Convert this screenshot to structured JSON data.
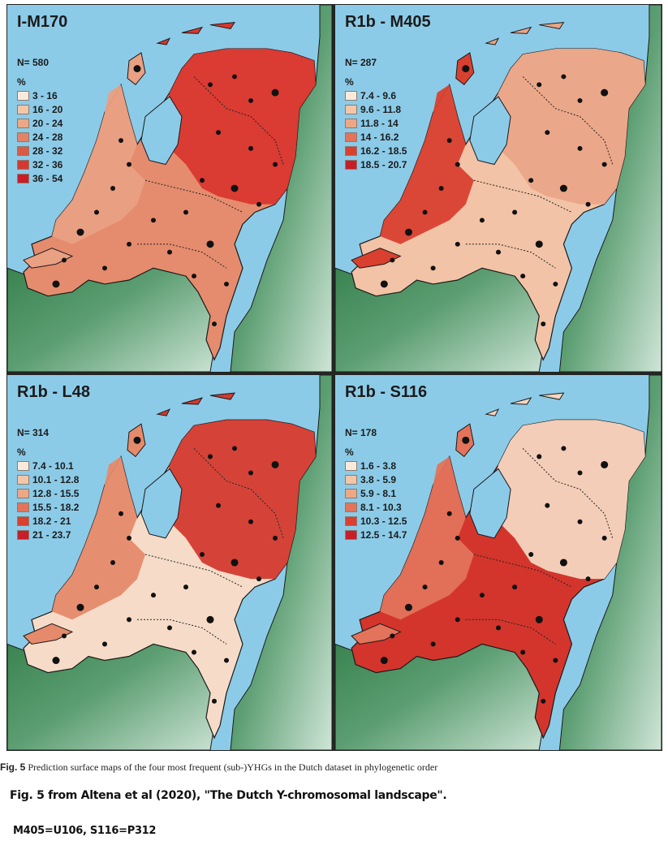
{
  "figure": {
    "panels": [
      {
        "title": "I-M170",
        "n_label": "N= 580",
        "percent_label": "%",
        "legend": [
          {
            "range": "3 - 16",
            "color": "#fbeadb"
          },
          {
            "range": "16 - 20",
            "color": "#f3c6a8"
          },
          {
            "range": "20 - 24",
            "color": "#eda785"
          },
          {
            "range": "24 - 28",
            "color": "#e38466"
          },
          {
            "range": "28 - 32",
            "color": "#db5a44"
          },
          {
            "range": "32 - 36",
            "color": "#d6382f"
          },
          {
            "range": "36 - 54",
            "color": "#c91d28"
          }
        ],
        "north_fill": "#d9372e",
        "south_fill": "#e58c6e",
        "west_fill": "#e9a083"
      },
      {
        "title": "R1b - M405",
        "n_label": "N= 287",
        "percent_label": "%",
        "legend": [
          {
            "range": "7.4 - 9.6",
            "color": "#fbeadb"
          },
          {
            "range": "9.6 - 11.8",
            "color": "#f3c6a8"
          },
          {
            "range": "11.8 - 14",
            "color": "#eda785"
          },
          {
            "range": "14 - 16.2",
            "color": "#e3735a"
          },
          {
            "range": "16.2 - 18.5",
            "color": "#d9402f"
          },
          {
            "range": "18.5 - 20.7",
            "color": "#c91d28"
          }
        ],
        "north_fill": "#eaa587",
        "south_fill": "#f2c3a6",
        "west_fill": "#d9402f"
      },
      {
        "title": "R1b - L48",
        "n_label": "N= 314",
        "percent_label": "%",
        "legend": [
          {
            "range": "7.4 - 10.1",
            "color": "#fbeadb"
          },
          {
            "range": "10.1 - 12.8",
            "color": "#f3c6a8"
          },
          {
            "range": "12.8 - 15.5",
            "color": "#eda785"
          },
          {
            "range": "15.5 - 18.2",
            "color": "#e3735a"
          },
          {
            "range": "18.2 - 21",
            "color": "#d9402f"
          },
          {
            "range": "21 - 23.7",
            "color": "#c91d28"
          }
        ],
        "north_fill": "#d33a30",
        "south_fill": "#f6dcc8",
        "west_fill": "#e58a6b"
      },
      {
        "title": "R1b - S116",
        "n_label": "N= 178",
        "percent_label": "%",
        "legend": [
          {
            "range": "1.6 - 3.8",
            "color": "#fbeadb"
          },
          {
            "range": "3.8 - 5.9",
            "color": "#f3c6a8"
          },
          {
            "range": "5.9 - 8.1",
            "color": "#eda785"
          },
          {
            "range": "8.1 - 10.3",
            "color": "#e3735a"
          },
          {
            "range": "10.3 - 12.5",
            "color": "#d9402f"
          },
          {
            "range": "12.5 - 14.7",
            "color": "#c91d28"
          }
        ],
        "north_fill": "#f5d6c0",
        "south_fill": "#d3352c",
        "west_fill": "#e3735a"
      }
    ],
    "colors": {
      "sea": "#8ccbe8",
      "land_dark": "#2f7a45",
      "land_light": "#cfe5d7",
      "border": "#1a1a1a"
    }
  },
  "caption": {
    "label": "Fig. 5",
    "text": " Prediction surface maps of the four most frequent (sub-)YHGs in the Dutch dataset in phylogenetic order"
  },
  "notes": {
    "source": "Fig. 5 from Altena et al (2020), \"The Dutch Y-chromosomal landscape\".",
    "aliases": "M405=U106, S116=P312"
  }
}
